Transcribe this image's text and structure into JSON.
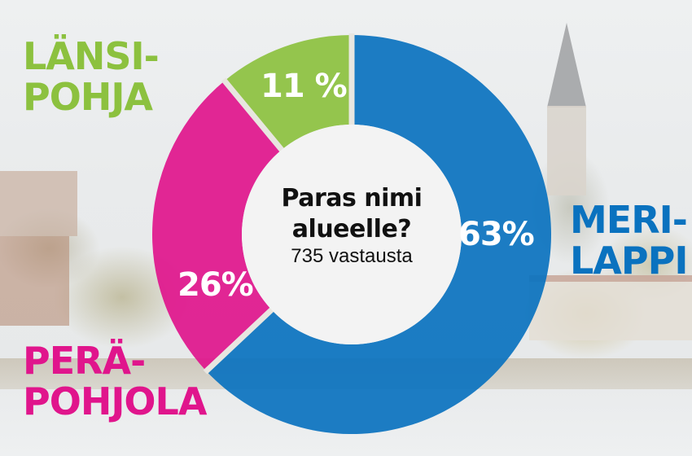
{
  "chart_data": {
    "type": "pie",
    "variant": "donut",
    "title": "Paras nimi alueelle?",
    "subtitle": "735 vastausta",
    "categories": [
      "Meri-Lappi",
      "Peräpohjola",
      "Länsi-Pohja"
    ],
    "values": [
      63,
      26,
      11
    ],
    "unit": "%",
    "colors": [
      "#0a72bf",
      "#e0158c",
      "#8cc13f"
    ],
    "start_angle": "12 o'clock",
    "direction": "clockwise",
    "legend": "region labels placed next to slices"
  },
  "center": {
    "title_line1": "Paras nimi",
    "title_line2": "alueelle?",
    "subtitle": "735 vastausta"
  },
  "slices": {
    "meri_lappi": {
      "label": "63%",
      "color": "#0a72bf"
    },
    "perapohjola": {
      "label": "26%",
      "color": "#e0158c"
    },
    "lansi_pohja": {
      "label": "11 %",
      "color": "#8cc13f"
    }
  },
  "regions": {
    "lansi_pohja": {
      "line1": "LÄNSI-",
      "line2": "POHJA",
      "color": "#8cc13f"
    },
    "meri_lappi": {
      "line1": "MERI-",
      "line2": "LAPPI",
      "color": "#0a72bf"
    },
    "perapohjola": {
      "line1": "PERÄ-",
      "line2": "POHJOLA",
      "color": "#e0158c"
    }
  },
  "background": {
    "description": "faded photo of a lakeside town with church spire, trees and houses",
    "base_color": "#eceeef"
  }
}
